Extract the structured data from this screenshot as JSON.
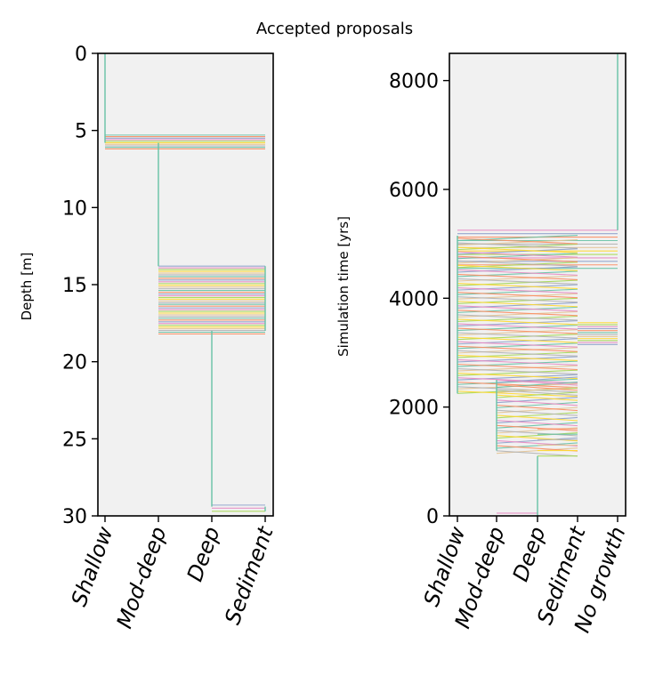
{
  "suptitle": "Accepted proposals",
  "palette": [
    "#66c2a5",
    "#fc8d62",
    "#8da0cb",
    "#e78ac3",
    "#a6d854",
    "#ffd92f",
    "#e5c494",
    "#b3b3b3"
  ],
  "axes_background": "#f1f1f1",
  "chart_data": [
    {
      "type": "line",
      "name": "depth-panel",
      "ylabel": "Depth [m]",
      "xlabel": "",
      "ylim": [
        30,
        0
      ],
      "y_inverted": true,
      "yticks": [
        "0",
        "5",
        "10",
        "15",
        "20",
        "25",
        "30"
      ],
      "categories": [
        "Shallow",
        "Mod-deep",
        "Deep",
        "Sediment"
      ],
      "step_profile": [
        {
          "category": "Shallow",
          "from": 0,
          "to": 5.8
        },
        {
          "category": "Mod-deep",
          "from": 5.8,
          "to": 6.2
        },
        {
          "category": "Mod-deep",
          "from": 6.2,
          "to": 13.8
        },
        {
          "category": "Sediment",
          "from": 13.8,
          "to": 18.0
        },
        {
          "category": "Deep",
          "from": 18.0,
          "to": 29.4
        },
        {
          "category": "Sediment",
          "from": 29.4,
          "to": 29.7
        }
      ],
      "transition_bands": [
        {
          "from_category": "Shallow",
          "to_category": "Sediment",
          "depth_range": [
            5.3,
            6.2
          ],
          "count": 10
        },
        {
          "from_category": "Mod-deep",
          "to_category": "Sediment",
          "depth_range": [
            13.8,
            18.2
          ],
          "count": 40
        },
        {
          "from_category": "Deep",
          "to_category": "Sediment",
          "depth_range": [
            29.3,
            29.7
          ],
          "count": 3
        }
      ]
    },
    {
      "type": "line",
      "name": "time-panel",
      "ylabel": "Simulation time [yrs]",
      "xlabel": "",
      "ylim": [
        0,
        8500
      ],
      "yticks": [
        "0",
        "2000",
        "4000",
        "6000",
        "8000"
      ],
      "categories": [
        "Shallow",
        "Mod-deep",
        "Deep",
        "Sediment",
        "No growth"
      ],
      "step_profile": [
        {
          "category": "No growth",
          "from": 8500,
          "to": 5250
        },
        {
          "category": "Shallow",
          "from": 5150,
          "to": 2250
        },
        {
          "category": "Mod-deep",
          "from": 2500,
          "to": 1200
        },
        {
          "category": "Deep",
          "from": 1100,
          "to": 0
        }
      ],
      "transition_bands": [
        {
          "from_category": "Shallow",
          "to_category": "No growth",
          "time_range": [
            4550,
            5250
          ],
          "count": 12
        },
        {
          "from_category": "Shallow",
          "to_category": "Sediment",
          "time_range": [
            2250,
            5100
          ],
          "count": 70
        },
        {
          "from_category": "Sediment",
          "to_category": "No growth",
          "time_range": [
            3150,
            3550
          ],
          "count": 12
        },
        {
          "from_category": "Mod-deep",
          "to_category": "Sediment",
          "time_range": [
            1150,
            2500
          ],
          "count": 30
        },
        {
          "from_category": "Deep",
          "to_category": "Sediment",
          "time_range": [
            1100,
            1600
          ],
          "count": 6
        },
        {
          "from_category": "Deep",
          "to_category": "Mod-deep",
          "time_range": [
            0,
            50
          ],
          "count": 2
        }
      ]
    }
  ]
}
